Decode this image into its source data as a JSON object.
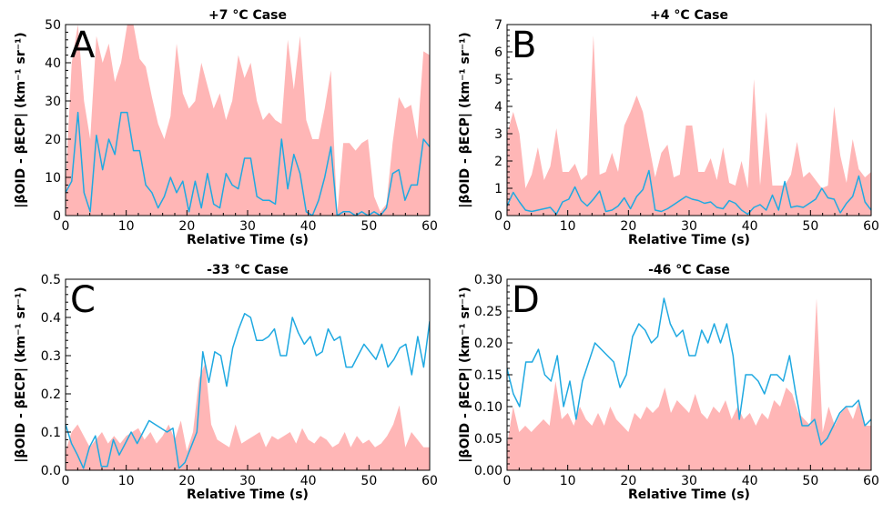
{
  "colors": {
    "fill": "#ffb6b6",
    "line": "#1fa9e1"
  },
  "chart_data": [
    {
      "type": "area",
      "title": "+7 °C Case",
      "letter": "A",
      "xlabel": "Relative Time (s)",
      "ylabel": "|βOID - βECP| (km⁻¹ sr⁻¹)",
      "xlim": [
        0,
        60
      ],
      "ylim": [
        0,
        50
      ],
      "xticks": [
        "0",
        "10",
        "20",
        "30",
        "40",
        "50",
        "60"
      ],
      "yticks": [
        "0",
        "10",
        "20",
        "30",
        "40",
        "50"
      ],
      "series": [
        {
          "kind": "area",
          "values": [
            8,
            40,
            50,
            30,
            20,
            47,
            40,
            45,
            35,
            40,
            50,
            50,
            41,
            39,
            31,
            24,
            20,
            26,
            45,
            32,
            28,
            30,
            40,
            34,
            28,
            32,
            25,
            30,
            42,
            36,
            40,
            30,
            25,
            27,
            25,
            24,
            46,
            33,
            47,
            25,
            20,
            20,
            28,
            38,
            0,
            19,
            19,
            17,
            19,
            20,
            5,
            1,
            3,
            19,
            31,
            28,
            29,
            20,
            43,
            42
          ]
        },
        {
          "kind": "line",
          "values": [
            6,
            9,
            27,
            6,
            1,
            21,
            12,
            20,
            16,
            27,
            27,
            17,
            17,
            8,
            6,
            2,
            5,
            10,
            6,
            9,
            1,
            9,
            2,
            11,
            3,
            2,
            11,
            8,
            7,
            15,
            15,
            5,
            4,
            4,
            3,
            20,
            7,
            16,
            11,
            1,
            0,
            4,
            10,
            18,
            0,
            1,
            1,
            0,
            1,
            0,
            1,
            0,
            2,
            11,
            12,
            4,
            8,
            8,
            20,
            18
          ]
        }
      ]
    },
    {
      "type": "area",
      "title": "+4 °C Case",
      "letter": "B",
      "xlabel": "Relative Time (s)",
      "ylabel": "|βOID - βECP| (km⁻¹ sr⁻¹)",
      "xlim": [
        0,
        60
      ],
      "ylim": [
        0,
        7
      ],
      "xticks": [
        "0",
        "10",
        "20",
        "30",
        "40",
        "50",
        "60"
      ],
      "yticks": [
        "0",
        "1",
        "2",
        "3",
        "4",
        "5",
        "6",
        "7"
      ],
      "series": [
        {
          "kind": "area",
          "values": [
            3.0,
            3.8,
            3.0,
            1.0,
            1.5,
            2.5,
            1.3,
            1.8,
            3.2,
            1.6,
            1.6,
            1.9,
            1.3,
            1.5,
            6.6,
            1.5,
            1.6,
            2.3,
            1.6,
            3.3,
            3.8,
            4.4,
            3.8,
            2.6,
            1.4,
            2.3,
            2.6,
            1.4,
            1.5,
            3.3,
            3.3,
            1.6,
            1.6,
            2.1,
            1.3,
            2.5,
            1.2,
            1.1,
            2.0,
            1.0,
            5.0,
            1.1,
            3.8,
            1.1,
            1.1,
            1.1,
            1.5,
            2.7,
            1.4,
            1.6,
            1.3,
            1.0,
            1.1,
            4.0,
            2.2,
            1.2,
            2.8,
            1.7,
            1.4,
            1.6
          ]
        },
        {
          "kind": "line",
          "values": [
            0.35,
            0.85,
            0.5,
            0.2,
            0.15,
            0.2,
            0.25,
            0.3,
            0.05,
            0.5,
            0.6,
            1.05,
            0.55,
            0.35,
            0.6,
            0.9,
            0.15,
            0.2,
            0.35,
            0.65,
            0.25,
            0.7,
            0.95,
            1.65,
            0.2,
            0.15,
            0.25,
            0.4,
            0.55,
            0.7,
            0.6,
            0.55,
            0.45,
            0.5,
            0.3,
            0.25,
            0.55,
            0.45,
            0.2,
            0.05,
            0.3,
            0.4,
            0.2,
            0.75,
            0.2,
            1.25,
            0.3,
            0.35,
            0.3,
            0.45,
            0.6,
            1.0,
            0.65,
            0.6,
            0.1,
            0.45,
            0.7,
            1.45,
            0.5,
            0.2
          ]
        }
      ]
    },
    {
      "type": "area",
      "title": "-33 °C Case",
      "letter": "C",
      "xlabel": "Relative Time (s)",
      "ylabel": "|βOID - βECP| (km⁻¹ sr⁻¹)",
      "xlim": [
        0,
        60
      ],
      "ylim": [
        0,
        0.5
      ],
      "xticks": [
        "0",
        "10",
        "20",
        "30",
        "40",
        "50",
        "60"
      ],
      "yticks": [
        "0.0",
        "0.1",
        "0.2",
        "0.3",
        "0.4",
        "0.5"
      ],
      "series": [
        {
          "kind": "area",
          "values": [
            0.05,
            0.1,
            0.12,
            0.09,
            0.06,
            0.08,
            0.1,
            0.07,
            0.09,
            0.07,
            0.09,
            0.1,
            0.11,
            0.08,
            0.1,
            0.07,
            0.09,
            0.12,
            0.08,
            0.13,
            0.05,
            0.1,
            0.24,
            0.28,
            0.12,
            0.08,
            0.07,
            0.06,
            0.12,
            0.07,
            0.08,
            0.09,
            0.1,
            0.06,
            0.09,
            0.08,
            0.09,
            0.1,
            0.07,
            0.11,
            0.08,
            0.07,
            0.09,
            0.08,
            0.06,
            0.07,
            0.1,
            0.06,
            0.09,
            0.07,
            0.08,
            0.06,
            0.07,
            0.09,
            0.12,
            0.17,
            0.06,
            0.1,
            0.08,
            0.06,
            0.06
          ]
        },
        {
          "kind": "line",
          "values": [
            0.12,
            0.07,
            0.04,
            0.005,
            0.06,
            0.09,
            0.01,
            0.01,
            0.08,
            0.04,
            0.07,
            0.1,
            0.07,
            0.1,
            0.13,
            0.12,
            0.11,
            0.1,
            0.11,
            0.005,
            0.02,
            0.06,
            0.1,
            0.31,
            0.23,
            0.31,
            0.3,
            0.22,
            0.32,
            0.37,
            0.41,
            0.4,
            0.34,
            0.34,
            0.35,
            0.37,
            0.3,
            0.3,
            0.4,
            0.36,
            0.33,
            0.35,
            0.3,
            0.31,
            0.37,
            0.34,
            0.35,
            0.27,
            0.27,
            0.3,
            0.33,
            0.31,
            0.29,
            0.33,
            0.27,
            0.29,
            0.32,
            0.33,
            0.25,
            0.35,
            0.27,
            0.39
          ]
        }
      ]
    },
    {
      "type": "area",
      "title": "-46 °C Case",
      "letter": "D",
      "xlabel": "Relative Time (s)",
      "ylabel": "|βOID - βECP| (km⁻¹ sr⁻¹)",
      "xlim": [
        0,
        60
      ],
      "ylim": [
        0,
        0.3
      ],
      "xticks": [
        "0",
        "10",
        "20",
        "30",
        "40",
        "50",
        "60"
      ],
      "yticks": [
        "0.00",
        "0.05",
        "0.10",
        "0.15",
        "0.20",
        "0.25",
        "0.30"
      ],
      "series": [
        {
          "kind": "area",
          "values": [
            0.04,
            0.1,
            0.06,
            0.07,
            0.06,
            0.07,
            0.08,
            0.07,
            0.14,
            0.08,
            0.09,
            0.07,
            0.1,
            0.08,
            0.07,
            0.09,
            0.07,
            0.1,
            0.08,
            0.07,
            0.06,
            0.09,
            0.08,
            0.1,
            0.09,
            0.1,
            0.13,
            0.09,
            0.11,
            0.1,
            0.09,
            0.12,
            0.09,
            0.08,
            0.1,
            0.09,
            0.11,
            0.08,
            0.1,
            0.08,
            0.09,
            0.07,
            0.09,
            0.08,
            0.11,
            0.1,
            0.13,
            0.12,
            0.09,
            0.08,
            0.07,
            0.27,
            0.06,
            0.1,
            0.07,
            0.09,
            0.1,
            0.08,
            0.11,
            0.07,
            0.07
          ]
        },
        {
          "kind": "line",
          "values": [
            0.16,
            0.12,
            0.1,
            0.17,
            0.17,
            0.19,
            0.15,
            0.14,
            0.18,
            0.1,
            0.14,
            0.08,
            0.14,
            0.17,
            0.2,
            0.19,
            0.18,
            0.17,
            0.13,
            0.15,
            0.21,
            0.23,
            0.22,
            0.2,
            0.21,
            0.27,
            0.23,
            0.21,
            0.22,
            0.18,
            0.18,
            0.22,
            0.2,
            0.23,
            0.2,
            0.23,
            0.18,
            0.08,
            0.15,
            0.15,
            0.14,
            0.12,
            0.15,
            0.15,
            0.14,
            0.18,
            0.12,
            0.07,
            0.07,
            0.08,
            0.04,
            0.05,
            0.07,
            0.09,
            0.1,
            0.1,
            0.11,
            0.07,
            0.08
          ]
        }
      ]
    }
  ]
}
